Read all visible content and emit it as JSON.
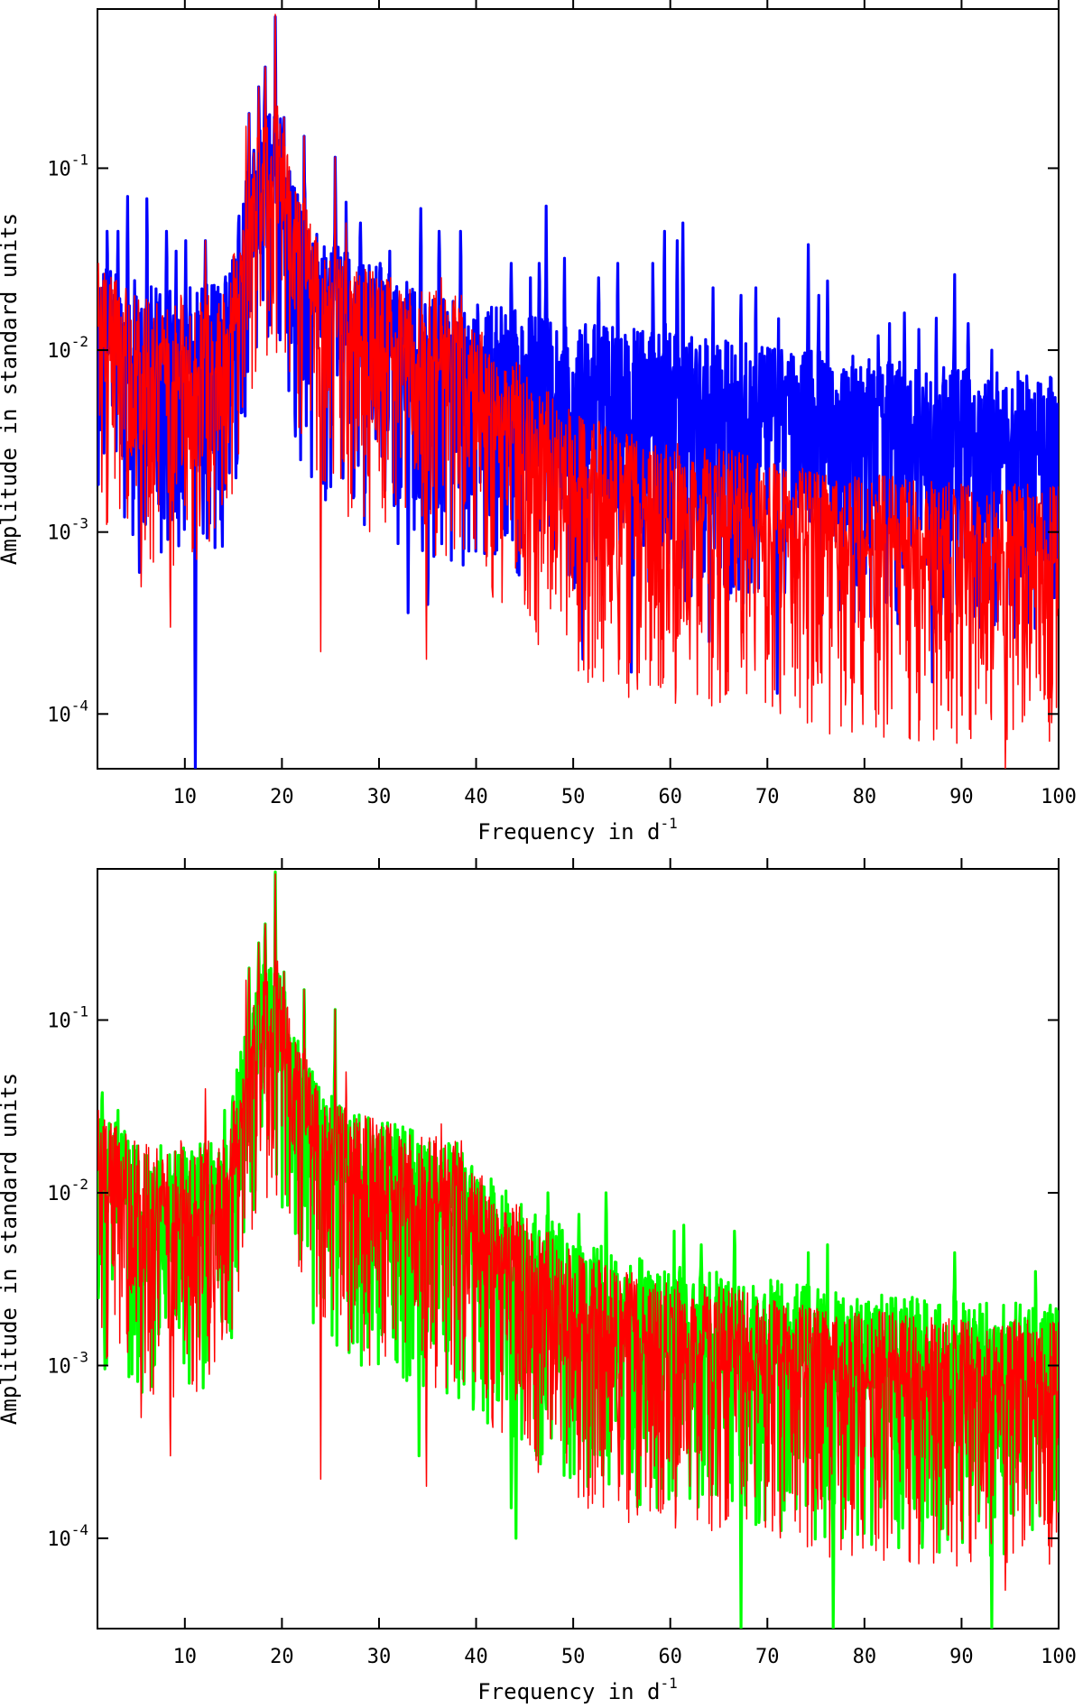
{
  "chart_data": [
    {
      "type": "line",
      "panel": "top",
      "xlabel": "Frequency in d",
      "xlabel_sup": "-1",
      "ylabel": "Amplitude in standard units",
      "xlim": [
        1,
        100
      ],
      "ylim": [
        5e-05,
        0.75
      ],
      "yscale": "log",
      "x_ticks": [
        10,
        20,
        30,
        40,
        50,
        60,
        70,
        80,
        90,
        100
      ],
      "x_tick_labels": [
        "10",
        "20",
        "30",
        "40",
        "50",
        "60",
        "70",
        "80",
        "90",
        "100"
      ],
      "y_ticks": [
        0.1,
        0.01,
        0.001,
        0.0001
      ],
      "y_tick_labels": [
        {
          "base": "10",
          "exp": "-1"
        },
        {
          "base": "10",
          "exp": "-2"
        },
        {
          "base": "10",
          "exp": "-3"
        },
        {
          "base": "10",
          "exp": "-4"
        }
      ],
      "series": [
        {
          "name": "blue",
          "color": "#0000ff",
          "width": 3.2,
          "seed": 11,
          "anchors": [
            [
              1,
              0.011
            ],
            [
              8,
              0.008
            ],
            [
              14,
              0.009
            ],
            [
              16,
              0.03
            ],
            [
              18,
              0.08
            ],
            [
              19.5,
              0.09
            ],
            [
              21,
              0.035
            ],
            [
              24,
              0.016
            ],
            [
              28,
              0.012
            ],
            [
              33,
              0.009
            ],
            [
              40,
              0.007
            ],
            [
              50,
              0.0055
            ],
            [
              60,
              0.0048
            ],
            [
              70,
              0.004
            ],
            [
              80,
              0.0035
            ],
            [
              90,
              0.003
            ],
            [
              100,
              0.0028
            ]
          ],
          "peaks": [
            [
              19.3,
              0.68
            ],
            [
              18.3,
              0.36
            ],
            [
              17.6,
              0.28
            ],
            [
              20.2,
              0.19
            ],
            [
              22.3,
              0.15
            ],
            [
              25.5,
              0.115
            ],
            [
              16.6,
              0.2
            ],
            [
              4.1,
              0.07
            ],
            [
              6.1,
              0.068
            ],
            [
              2.0,
              0.045
            ],
            [
              3.1,
              0.045
            ],
            [
              8.1,
              0.045
            ],
            [
              9.1,
              0.035
            ],
            [
              10.1,
              0.04
            ],
            [
              12.1,
              0.04
            ],
            [
              26.6,
              0.065
            ],
            [
              28.1,
              0.05
            ],
            [
              30.1,
              0.03
            ],
            [
              31.1,
              0.035
            ],
            [
              32.9,
              0.045
            ],
            [
              34.3,
              0.06
            ],
            [
              36.2,
              0.045
            ],
            [
              38.4,
              0.045
            ],
            [
              43.6,
              0.03
            ],
            [
              45.6,
              0.025
            ],
            [
              46.5,
              0.03
            ],
            [
              47.2,
              0.062
            ],
            [
              49.1,
              0.032
            ],
            [
              52.6,
              0.025
            ],
            [
              54.6,
              0.03
            ],
            [
              58.2,
              0.03
            ],
            [
              59.4,
              0.045
            ],
            [
              60.7,
              0.04
            ],
            [
              61.3,
              0.05
            ],
            [
              64.4,
              0.022
            ],
            [
              67.3,
              0.02
            ],
            [
              68.8,
              0.022
            ],
            [
              71.1,
              0.025
            ],
            [
              74.2,
              0.038
            ],
            [
              75.3,
              0.02
            ],
            [
              76.2,
              0.024
            ],
            [
              81.4,
              0.012
            ],
            [
              82.6,
              0.014
            ],
            [
              84.1,
              0.016
            ],
            [
              85.6,
              0.013
            ],
            [
              87.4,
              0.015
            ],
            [
              89.3,
              0.026
            ],
            [
              90.7,
              0.014
            ],
            [
              93.1,
              0.01
            ]
          ],
          "dips": [
            [
              11.1,
              5e-05
            ],
            [
              5.3,
              0.0006
            ],
            [
              33,
              0.00036
            ],
            [
              35,
              0.0004
            ],
            [
              71,
              0.00013
            ],
            [
              56,
              0.00017
            ],
            [
              87,
              0.00015
            ],
            [
              51,
              0.0002
            ],
            [
              64,
              0.00025
            ],
            [
              78,
              0.0003
            ],
            [
              95,
              0.0004
            ]
          ]
        },
        {
          "name": "red",
          "color": "#ff0000",
          "width": 1.5,
          "seed": 29,
          "anchors": [
            [
              1,
              0.011
            ],
            [
              8,
              0.0065
            ],
            [
              14,
              0.008
            ],
            [
              16,
              0.03
            ],
            [
              18,
              0.08
            ],
            [
              19.5,
              0.09
            ],
            [
              21,
              0.035
            ],
            [
              24,
              0.015
            ],
            [
              28,
              0.011
            ],
            [
              33,
              0.009
            ],
            [
              38,
              0.0075
            ],
            [
              42,
              0.004
            ],
            [
              46,
              0.0028
            ],
            [
              50,
              0.0018
            ],
            [
              55,
              0.0014
            ],
            [
              60,
              0.0012
            ],
            [
              70,
              0.001
            ],
            [
              80,
              0.0008
            ],
            [
              90,
              0.0007
            ],
            [
              100,
              0.0007
            ]
          ],
          "peaks": [
            [
              19.3,
              0.7
            ],
            [
              18.3,
              0.36
            ],
            [
              17.6,
              0.28
            ],
            [
              20.2,
              0.19
            ],
            [
              22.3,
              0.15
            ],
            [
              25.5,
              0.115
            ],
            [
              16.6,
              0.2
            ],
            [
              16.3,
              0.17
            ],
            [
              26.6,
              0.05
            ],
            [
              12.1,
              0.04
            ],
            [
              9.6,
              0.02
            ],
            [
              7.1,
              0.018
            ],
            [
              36.4,
              0.025
            ],
            [
              38.5,
              0.02
            ],
            [
              31.2,
              0.025
            ],
            [
              29.4,
              0.022
            ],
            [
              1.1,
              0.03
            ],
            [
              13.5,
              0.018
            ]
          ],
          "dips": [
            [
              24,
              0.00022
            ],
            [
              34.9,
              0.0002
            ],
            [
              8.5,
              0.0003
            ],
            [
              5.5,
              0.0005
            ],
            [
              70,
              0.0002
            ],
            [
              62,
              0.0002
            ],
            [
              94.5,
              5e-05
            ],
            [
              57,
              0.0003
            ],
            [
              81,
              0.0003
            ],
            [
              89,
              0.0003
            ],
            [
              45,
              0.0004
            ]
          ]
        }
      ]
    },
    {
      "type": "line",
      "panel": "bottom",
      "xlabel": "Frequency in d",
      "xlabel_sup": "-1",
      "ylabel": "Amplitude in standard units",
      "xlim": [
        1,
        100
      ],
      "ylim": [
        3e-05,
        0.75
      ],
      "yscale": "log",
      "x_ticks": [
        10,
        20,
        30,
        40,
        50,
        60,
        70,
        80,
        90,
        100
      ],
      "x_tick_labels": [
        "10",
        "20",
        "30",
        "40",
        "50",
        "60",
        "70",
        "80",
        "90",
        "100"
      ],
      "y_ticks": [
        0.1,
        0.01,
        0.001,
        0.0001
      ],
      "y_tick_labels": [
        {
          "base": "10",
          "exp": "-1"
        },
        {
          "base": "10",
          "exp": "-2"
        },
        {
          "base": "10",
          "exp": "-3"
        },
        {
          "base": "10",
          "exp": "-4"
        }
      ],
      "series": [
        {
          "name": "green",
          "color": "#00ff00",
          "width": 3.2,
          "seed": 47,
          "anchors": [
            [
              1,
              0.011
            ],
            [
              8,
              0.007
            ],
            [
              14,
              0.008
            ],
            [
              16,
              0.03
            ],
            [
              18,
              0.08
            ],
            [
              19.5,
              0.09
            ],
            [
              21,
              0.035
            ],
            [
              24,
              0.015
            ],
            [
              28,
              0.011
            ],
            [
              33,
              0.009
            ],
            [
              38,
              0.0075
            ],
            [
              42,
              0.0045
            ],
            [
              46,
              0.0032
            ],
            [
              50,
              0.0022
            ],
            [
              55,
              0.0017
            ],
            [
              60,
              0.0015
            ],
            [
              70,
              0.0012
            ],
            [
              80,
              0.001
            ],
            [
              90,
              0.0009
            ],
            [
              100,
              0.0009
            ]
          ],
          "peaks": [
            [
              19.3,
              0.72
            ],
            [
              18.3,
              0.36
            ],
            [
              17.6,
              0.28
            ],
            [
              20.2,
              0.19
            ],
            [
              22.3,
              0.15
            ],
            [
              25.5,
              0.115
            ],
            [
              16.6,
              0.2
            ],
            [
              1.5,
              0.038
            ],
            [
              3.1,
              0.03
            ],
            [
              14.1,
              0.03
            ],
            [
              21.2,
              0.04
            ],
            [
              47.4,
              0.01
            ],
            [
              50.6,
              0.0075
            ],
            [
              53.4,
              0.01
            ],
            [
              60.4,
              0.006
            ],
            [
              61.4,
              0.0065
            ],
            [
              63.2,
              0.005
            ],
            [
              66.6,
              0.006
            ],
            [
              74.2,
              0.0045
            ],
            [
              76.2,
              0.005
            ],
            [
              89.3,
              0.0045
            ],
            [
              97.6,
              0.0035
            ]
          ],
          "dips": [
            [
              67.3,
              3e-05
            ],
            [
              76.8,
              3e-05
            ],
            [
              93.1,
              3e-05
            ],
            [
              44.1,
              0.0001
            ],
            [
              43.6,
              0.00015
            ],
            [
              34.1,
              0.0003
            ],
            [
              59.2,
              0.0002
            ],
            [
              5.6,
              0.0007
            ],
            [
              62,
              0.00017
            ],
            [
              82,
              0.00025
            ],
            [
              88,
              0.0002
            ]
          ]
        },
        {
          "name": "red",
          "color": "#ff0000",
          "width": 1.5,
          "seed": 29,
          "anchors": [
            [
              1,
              0.011
            ],
            [
              8,
              0.0065
            ],
            [
              14,
              0.008
            ],
            [
              16,
              0.03
            ],
            [
              18,
              0.08
            ],
            [
              19.5,
              0.09
            ],
            [
              21,
              0.035
            ],
            [
              24,
              0.015
            ],
            [
              28,
              0.011
            ],
            [
              33,
              0.009
            ],
            [
              38,
              0.0075
            ],
            [
              42,
              0.004
            ],
            [
              46,
              0.0028
            ],
            [
              50,
              0.0018
            ],
            [
              55,
              0.0014
            ],
            [
              60,
              0.0012
            ],
            [
              70,
              0.001
            ],
            [
              80,
              0.0008
            ],
            [
              90,
              0.0007
            ],
            [
              100,
              0.0007
            ]
          ],
          "peaks": [
            [
              19.3,
              0.7
            ],
            [
              18.3,
              0.36
            ],
            [
              17.6,
              0.28
            ],
            [
              20.2,
              0.19
            ],
            [
              22.3,
              0.15
            ],
            [
              25.5,
              0.115
            ],
            [
              16.6,
              0.2
            ],
            [
              16.3,
              0.17
            ],
            [
              26.6,
              0.05
            ],
            [
              12.1,
              0.04
            ],
            [
              9.6,
              0.02
            ],
            [
              7.1,
              0.018
            ],
            [
              36.4,
              0.025
            ],
            [
              38.5,
              0.02
            ],
            [
              31.2,
              0.025
            ],
            [
              29.4,
              0.022
            ],
            [
              1.1,
              0.03
            ],
            [
              13.5,
              0.018
            ]
          ],
          "dips": [
            [
              24,
              0.00022
            ],
            [
              34.9,
              0.0002
            ],
            [
              8.5,
              0.0003
            ],
            [
              5.5,
              0.0005
            ],
            [
              70,
              0.0002
            ],
            [
              62,
              0.0002
            ],
            [
              94.5,
              5e-05
            ],
            [
              57,
              0.0003
            ],
            [
              81,
              0.0003
            ],
            [
              89,
              0.0003
            ],
            [
              45,
              0.0004
            ]
          ]
        }
      ]
    }
  ]
}
